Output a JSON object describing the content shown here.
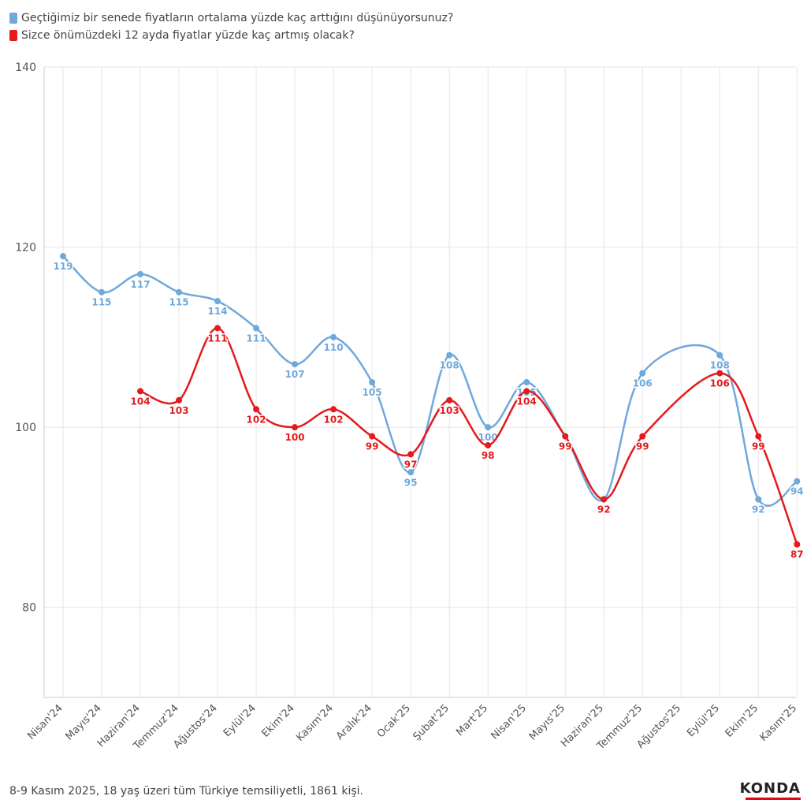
{
  "colors": {
    "series1": "#6fa8dc",
    "series2": "#e41a1c",
    "grid": "#e6e6e6",
    "axis": "#555555"
  },
  "chart_data": {
    "type": "line",
    "categories": [
      "Nisan'24",
      "Mayıs'24",
      "Haziran'24",
      "Temmuz'24",
      "Ağustos'24",
      "Eylül'24",
      "Ekim'24",
      "Kasım'24",
      "Aralık'24",
      "Ocak'25",
      "Şubat'25",
      "Mart'25",
      "Nisan'25",
      "Mayıs'25",
      "Haziran'25",
      "Temmuz'25",
      "Ağustos'25",
      "Eylül'25",
      "Ekim'25",
      "Kasım'25"
    ],
    "series": [
      {
        "name": "Geçtiğimiz bir senede fiyatların ortalama yüzde kaç arttığını düşünüyorsunuz?",
        "color": "#6fa8dc",
        "values": [
          119,
          115,
          117,
          115,
          114,
          111,
          107,
          110,
          105,
          95,
          108,
          100,
          105,
          99,
          92,
          106,
          null,
          108,
          92,
          94
        ]
      },
      {
        "name": "Sizce önümüzdeki 12 ayda fiyatlar yüzde kaç artmış olacak?",
        "color": "#e41a1c",
        "values": [
          null,
          null,
          104,
          103,
          111,
          102,
          100,
          102,
          99,
          97,
          103,
          98,
          104,
          99,
          92,
          99,
          null,
          106,
          99,
          87
        ]
      }
    ],
    "yticks": [
      80,
      100,
      120,
      140
    ],
    "ylim": [
      70,
      140
    ],
    "grid": true,
    "smooth": true,
    "legend": "top-left"
  },
  "footer": {
    "note": "8-9 Kasım 2025, 18 yaş üzeri tüm Türkiye temsiliyetli, 1861 kişi.",
    "logo": "KONDA"
  }
}
